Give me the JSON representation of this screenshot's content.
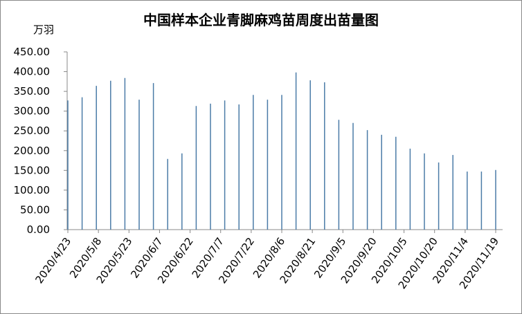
{
  "chart_data": {
    "type": "bar",
    "title": "中国样本企业青脚麻鸡苗周度出苗量图",
    "y_label": "万羽",
    "x": [
      "2020/4/23",
      "2020/4/30",
      "2020/5/7",
      "2020/5/14",
      "2020/5/21",
      "2020/5/28",
      "2020/6/4",
      "2020/6/11",
      "2020/6/18",
      "2020/6/25",
      "2020/7/2",
      "2020/7/9",
      "2020/7/16",
      "2020/7/23",
      "2020/7/30",
      "2020/8/6",
      "2020/8/13",
      "2020/8/20",
      "2020/8/27",
      "2020/9/3",
      "2020/9/10",
      "2020/9/17",
      "2020/9/24",
      "2020/10/1",
      "2020/10/8",
      "2020/10/15",
      "2020/10/22",
      "2020/10/29",
      "2020/11/5",
      "2020/11/12",
      "2020/11/19"
    ],
    "values": [
      327,
      335,
      364,
      377,
      384,
      329,
      371,
      179,
      193,
      313,
      319,
      327,
      317,
      341,
      329,
      341,
      398,
      378,
      373,
      278,
      270,
      252,
      240,
      235,
      205,
      193,
      170,
      189,
      147,
      147,
      151
    ],
    "color": "#4a7ba7",
    "xlim": [
      "2020/4/23",
      "2020/11/19"
    ],
    "xticks": [
      "2020/4/23",
      "2020/5/8",
      "2020/5/23",
      "2020/6/7",
      "2020/6/22",
      "2020/7/7",
      "2020/7/22",
      "2020/8/6",
      "2020/8/21",
      "2020/9/5",
      "2020/9/20",
      "2020/10/5",
      "2020/10/20",
      "2020/11/4",
      "2020/11/19"
    ],
    "ylim": [
      0,
      450
    ],
    "yticks": [
      {
        "value": 0,
        "label": "0.00"
      },
      {
        "value": 50,
        "label": "50.00"
      },
      {
        "value": 100,
        "label": "100.00"
      },
      {
        "value": 150,
        "label": "150.00"
      },
      {
        "value": 200,
        "label": "200.00"
      },
      {
        "value": 250,
        "label": "250.00"
      },
      {
        "value": 300,
        "label": "300.00"
      },
      {
        "value": 350,
        "label": "350.00"
      },
      {
        "value": 400,
        "label": "400.00"
      },
      {
        "value": 450,
        "label": "450.00"
      }
    ]
  }
}
